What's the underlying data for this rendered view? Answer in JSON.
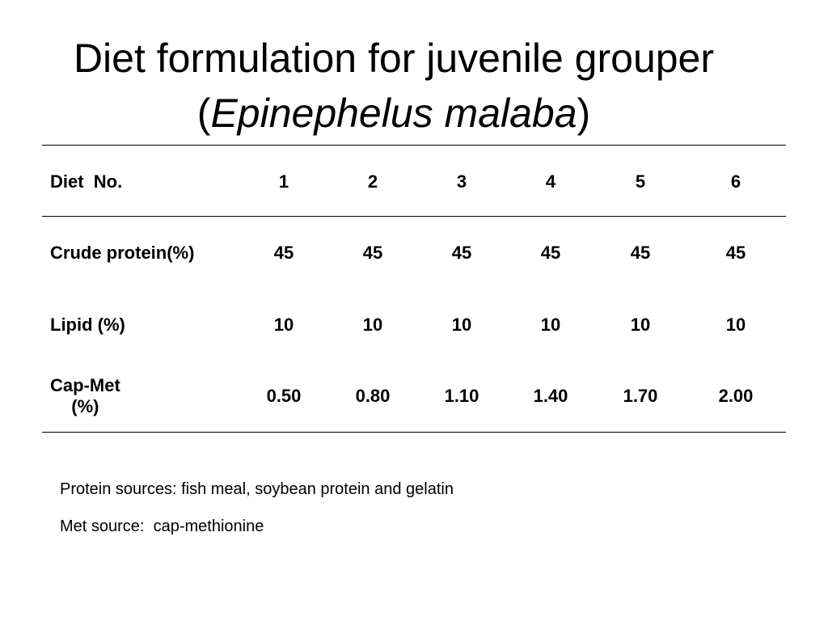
{
  "title": {
    "line1": "Diet formulation for juvenile grouper",
    "open": "(",
    "species": "Epinephelus malaba",
    "close": ")"
  },
  "table": {
    "header": {
      "label": "Diet  No.",
      "cells": [
        "1",
        "2",
        "3",
        "4",
        "5",
        "6"
      ]
    },
    "rows": [
      {
        "label": [
          "Crude protein(%)"
        ],
        "cells": [
          "45",
          "45",
          "45",
          "45",
          "45",
          "45"
        ]
      },
      {
        "label": [
          "Lipid (%)"
        ],
        "cells": [
          "10",
          "10",
          "10",
          "10",
          "10",
          "10"
        ]
      },
      {
        "label": [
          "Cap-Met",
          "(%)"
        ],
        "cells": [
          "0.50",
          "0.80",
          "1.10",
          "1.40",
          "1.70",
          "2.00"
        ]
      }
    ]
  },
  "notes": [
    "Protein sources: fish meal, soybean protein and gelatin",
    "Met source:  cap-methionine"
  ]
}
